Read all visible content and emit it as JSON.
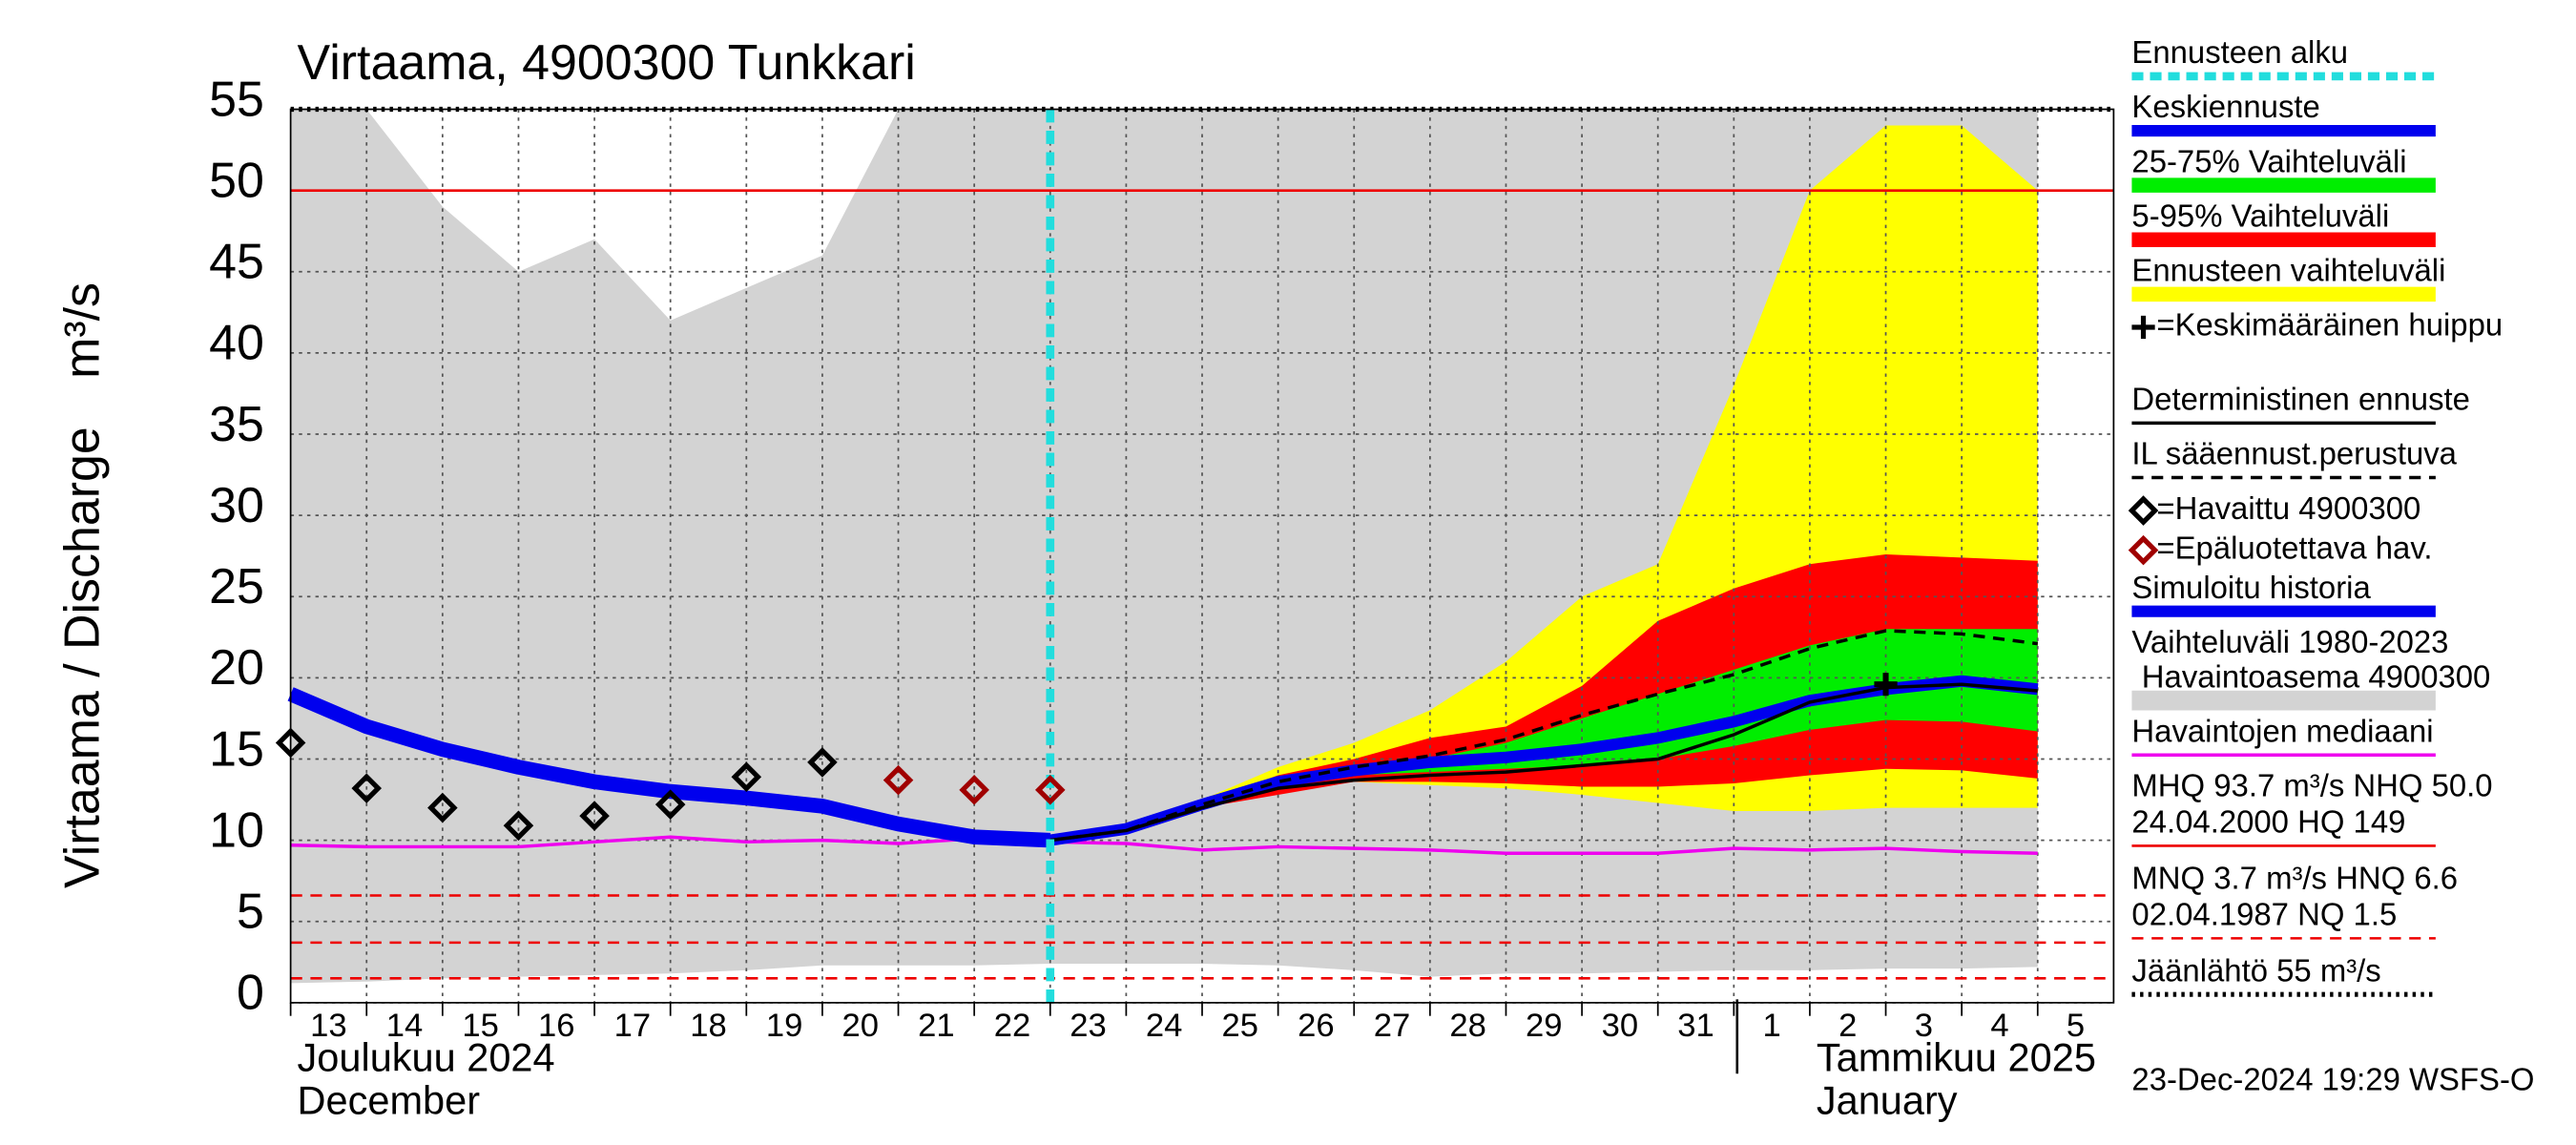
{
  "chart_data": {
    "type": "forecast",
    "title": "Virtaama, 4900300 Tunkkari",
    "y_label": "Virtaama / Discharge",
    "y_unit": "m³/s",
    "categories": [
      "13",
      "14",
      "15",
      "16",
      "17",
      "18",
      "19",
      "20",
      "21",
      "22",
      "23",
      "24",
      "25",
      "26",
      "27",
      "28",
      "29",
      "30",
      "31",
      "1",
      "2",
      "3",
      "4",
      "5"
    ],
    "month_labels": [
      {
        "label": "Joulukuu  2024",
        "label2": "December"
      },
      {
        "label": "Tammikuu  2025",
        "label2": "January"
      }
    ],
    "footer": "23-Dec-2024 19:29 WSFS-O",
    "ylim": [
      0,
      55
    ],
    "yticks": [
      0,
      5,
      10,
      15,
      20,
      25,
      30,
      35,
      40,
      45,
      50,
      55
    ],
    "grid": true,
    "forecast_start": {
      "name": "Ennusteen alku",
      "color": "#22dddd"
    },
    "series": [
      {
        "name": "Keskiennuste",
        "kind": "line",
        "color": "#0000ee",
        "width": 7,
        "values": [
          null,
          null,
          null,
          null,
          null,
          null,
          null,
          null,
          null,
          null,
          10,
          10.7,
          12.2,
          13.6,
          14.3,
          14.8,
          15.1,
          15.6,
          16.3,
          17.3,
          18.6,
          19.3,
          19.8,
          19.3
        ]
      },
      {
        "name": "25-75% Vaihteluväli",
        "kind": "band",
        "color": "#00ee00",
        "values": [
          null,
          null,
          null,
          null,
          null,
          null,
          null,
          null,
          null,
          null,
          10,
          10.6,
          12.2,
          13.6,
          14.4,
          15,
          16,
          17.5,
          19,
          20.5,
          22,
          23,
          23,
          23
        ],
        "low": [
          null,
          null,
          null,
          null,
          null,
          null,
          null,
          null,
          null,
          null,
          10,
          10.6,
          12.1,
          13.4,
          14,
          14.2,
          14.4,
          14.6,
          15,
          15.8,
          16.8,
          17.4,
          17.3,
          16.7
        ]
      },
      {
        "name": "5-95% Vaihteluväli",
        "kind": "band",
        "color": "#ff0000",
        "values": [
          null,
          null,
          null,
          null,
          null,
          null,
          null,
          null,
          null,
          null,
          10,
          10.7,
          12.3,
          14,
          15,
          16.3,
          17,
          19.5,
          23.5,
          25.5,
          27,
          27.6,
          27.4,
          27.2
        ],
        "low": [
          null,
          null,
          null,
          null,
          null,
          null,
          null,
          null,
          null,
          null,
          10,
          10.6,
          12,
          12.8,
          13.6,
          13.6,
          13.5,
          13.3,
          13.3,
          13.5,
          14,
          14.4,
          14.3,
          13.8
        ]
      },
      {
        "name": "Ennusteen vaihteluväli",
        "kind": "band",
        "color": "#ffff00",
        "values": [
          null,
          null,
          null,
          null,
          null,
          null,
          null,
          null,
          null,
          null,
          10,
          10.8,
          12.5,
          14.5,
          16,
          18,
          21,
          25,
          27,
          38,
          50,
          54,
          54,
          50
        ],
        "low": [
          null,
          null,
          null,
          null,
          null,
          null,
          null,
          null,
          null,
          null,
          10,
          10.6,
          12,
          13,
          13.6,
          13.4,
          13.2,
          12.8,
          12.3,
          11.8,
          11.8,
          12,
          12,
          12
        ]
      },
      {
        "name": "=Keskimääräinen huippu",
        "kind": "cross",
        "color": "#000000",
        "values": [
          null,
          null,
          null,
          null,
          null,
          null,
          null,
          null,
          null,
          null,
          null,
          null,
          null,
          null,
          null,
          null,
          null,
          null,
          null,
          null,
          null,
          19.6,
          null,
          null
        ]
      },
      {
        "name": "Deterministinen ennuste",
        "kind": "line",
        "color": "#000000",
        "width": 2,
        "values": [
          null,
          null,
          null,
          null,
          null,
          null,
          null,
          null,
          null,
          null,
          10,
          10.6,
          12,
          13.2,
          13.7,
          14,
          14.2,
          14.6,
          15,
          16.5,
          18.5,
          19.4,
          19.6,
          19.2
        ]
      },
      {
        "name": "IL sääennust.perustuva",
        "kind": "line",
        "color": "#000000",
        "width": 2,
        "dash": "dashed",
        "values": [
          null,
          null,
          null,
          null,
          null,
          null,
          null,
          null,
          null,
          null,
          10,
          10.6,
          12.2,
          13.6,
          14.5,
          15.2,
          16.2,
          17.7,
          19,
          20.2,
          21.8,
          22.9,
          22.7,
          22.1
        ]
      },
      {
        "name": "=Havaittu 4900300",
        "kind": "diamond",
        "color": "#000000",
        "values": [
          16,
          13.2,
          12,
          10.9,
          11.5,
          12.2,
          13.9,
          14.8,
          null,
          null,
          null,
          null,
          null,
          null,
          null,
          null,
          null,
          null,
          null,
          null,
          null,
          null,
          null,
          null
        ]
      },
      {
        "name": "=Epäluotettava hav.",
        "kind": "diamond",
        "color": "#a00000",
        "values": [
          null,
          null,
          null,
          null,
          null,
          null,
          null,
          null,
          13.7,
          13.1,
          13.1,
          null,
          null,
          null,
          null,
          null,
          null,
          null,
          null,
          null,
          null,
          null,
          null,
          null
        ]
      },
      {
        "name": "Simuloitu historia",
        "kind": "line",
        "color": "#0000ee",
        "width": 9,
        "values": [
          19,
          17,
          15.6,
          14.5,
          13.6,
          13,
          12.6,
          12.1,
          11,
          10.2,
          10,
          null,
          null,
          null,
          null,
          null,
          null,
          null,
          null,
          null,
          null,
          null,
          null,
          null
        ]
      },
      {
        "name": "Vaihteluväli 1980-2023",
        "name2": "Havaintoasema 4900300",
        "kind": "band",
        "color": "#d3d3d3",
        "values": [
          55,
          55,
          49,
          45,
          47,
          42,
          44,
          46,
          55,
          55,
          55,
          55,
          55,
          55,
          55,
          55,
          55,
          55,
          55,
          55,
          55,
          55,
          55,
          55
        ],
        "low": [
          1.2,
          1.3,
          1.5,
          1.6,
          1.7,
          1.8,
          2,
          2.3,
          2.3,
          2.3,
          2.4,
          2.4,
          2.4,
          2.3,
          2,
          1.6,
          1.8,
          1.8,
          1.9,
          2,
          2,
          2.1,
          2.1,
          2.2
        ]
      },
      {
        "name": "Havaintojen mediaani",
        "kind": "line",
        "color": "#ee00ee",
        "width": 2,
        "values": [
          9.7,
          9.6,
          9.6,
          9.6,
          9.9,
          10.2,
          9.9,
          10,
          9.8,
          10.1,
          9.9,
          9.8,
          9.4,
          9.6,
          9.5,
          9.4,
          9.2,
          9.2,
          9.2,
          9.5,
          9.4,
          9.5,
          9.3,
          9.2
        ]
      }
    ],
    "reference_lines": [
      {
        "value": 50,
        "color": "#ee0000",
        "dash": "solid"
      },
      {
        "value": 6.6,
        "color": "#ee0000",
        "dash": "dashed"
      },
      {
        "value": 3.7,
        "color": "#ee0000",
        "dash": "dashed"
      },
      {
        "value": 1.5,
        "color": "#ee0000",
        "dash": "dashed"
      },
      {
        "value": 55,
        "color": "#000000",
        "dash": "dotted"
      }
    ],
    "notes": [
      {
        "lines": [
          "MHQ 93.7 m³/s NHQ 50.0",
          "24.04.2000 HQ  149"
        ],
        "color": "#ee0000",
        "dash": "solid"
      },
      {
        "lines": [
          "MNQ  3.7 m³/s HNQ  6.6",
          "02.04.1987 NQ  1.5"
        ],
        "color": "#ee0000",
        "dash": "dashed"
      },
      {
        "lines": [
          "Jäänlähtö 55 m³/s"
        ],
        "color": "#000000",
        "dash": "dotted"
      }
    ]
  }
}
